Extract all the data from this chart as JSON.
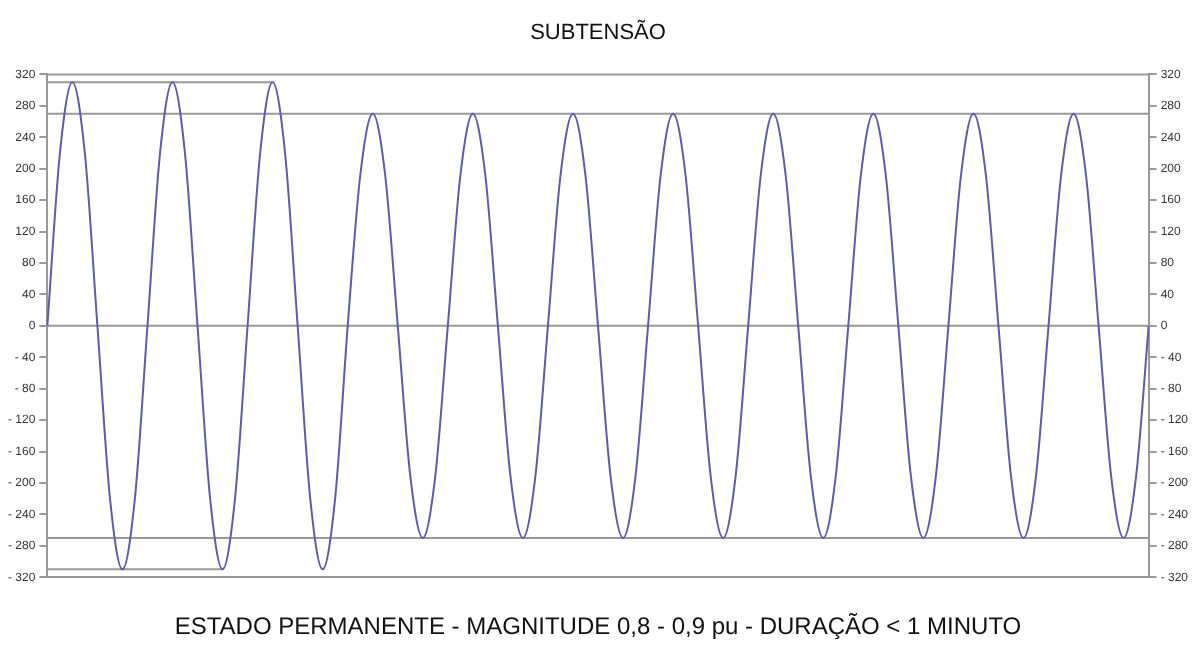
{
  "chart_data": {
    "type": "line",
    "title": "SUBTENSÃO",
    "xlabel": "ESTADO PERMANENTE - MAGNITUDE 0,8 - 0,9 pu - DURAÇÃO < 1 MINUTO",
    "categories": [
      null,
      null,
      null,
      null,
      null,
      null,
      null,
      null,
      null,
      null,
      null,
      null,
      null,
      null,
      null,
      null,
      null,
      null,
      null,
      null,
      null,
      null,
      null,
      null,
      null,
      null,
      null,
      null,
      null,
      null,
      null,
      null,
      null,
      null,
      null,
      null,
      null,
      null,
      null,
      null,
      null,
      null,
      null,
      null,
      null,
      null,
      null,
      null,
      null,
      null,
      null,
      null,
      null,
      null,
      null,
      null,
      null,
      null,
      null,
      null,
      null,
      null,
      null,
      null,
      null,
      null,
      null,
      null,
      null,
      null,
      null,
      null,
      null,
      null,
      null,
      null,
      null,
      null,
      null,
      null,
      null,
      null,
      null,
      null,
      null,
      null,
      null,
      null,
      null
    ],
    "series": [
      {
        "color": "#5c5ca8",
        "values": [
          0,
          219,
          310,
          219,
          0,
          -219,
          -310,
          -219,
          0,
          219,
          310,
          219,
          0,
          -219,
          -310,
          -219,
          0,
          219,
          310,
          219,
          0,
          -219,
          -310,
          -219,
          0,
          191,
          270,
          191,
          0,
          -191,
          -270,
          -191,
          0,
          191,
          270,
          191,
          0,
          -191,
          -270,
          -191,
          0,
          191,
          270,
          191,
          0,
          -191,
          -270,
          -191,
          0,
          191,
          270,
          191,
          0,
          -191,
          -270,
          -191,
          0,
          191,
          270,
          191,
          0,
          -191,
          -270,
          -191,
          0,
          191,
          270,
          191,
          0,
          -191,
          -270,
          -191,
          0,
          191,
          270,
          191,
          0,
          -191,
          -270,
          -191,
          0,
          191,
          270,
          191,
          0,
          -191,
          -270,
          -191,
          0
        ]
      },
      {
        "color": "#999999",
        "values": [
          310,
          310,
          310,
          310,
          310,
          310,
          310,
          310,
          310,
          310,
          310,
          310,
          310,
          310,
          310,
          310,
          310,
          310,
          310,
          null,
          null,
          null,
          null,
          null,
          null,
          null,
          null,
          null,
          null,
          null,
          null,
          null,
          null,
          null,
          null,
          null,
          null,
          null,
          null,
          null,
          null,
          null,
          null,
          null,
          null,
          null,
          null,
          null,
          null,
          null,
          null,
          null,
          null,
          null,
          null,
          null,
          null,
          null,
          null,
          null,
          null,
          null,
          null,
          null,
          null,
          null,
          null,
          null,
          null,
          null,
          null,
          null,
          null,
          null,
          null,
          null,
          null,
          null,
          null,
          null,
          null,
          null,
          null,
          null,
          null,
          null,
          null,
          null,
          null
        ]
      },
      {
        "color": "#999999",
        "values": [
          -310,
          -310,
          -310,
          -310,
          -310,
          -310,
          -310,
          -310,
          -310,
          -310,
          -310,
          -310,
          -310,
          -310,
          -310,
          null,
          null,
          null,
          null,
          null,
          null,
          null,
          null,
          null,
          null,
          null,
          null,
          null,
          null,
          null,
          null,
          null,
          null,
          null,
          null,
          null,
          null,
          null,
          null,
          null,
          null,
          null,
          null,
          null,
          null,
          null,
          null,
          null,
          null,
          null,
          null,
          null,
          null,
          null,
          null,
          null,
          null,
          null,
          null,
          null,
          null,
          null,
          null,
          null,
          null,
          null,
          null,
          null,
          null,
          null,
          null,
          null,
          null,
          null,
          null,
          null,
          null,
          null,
          null,
          null,
          null,
          null,
          null,
          null,
          null,
          null,
          null,
          null,
          null
        ]
      }
    ],
    "ylim": [
      -320,
      320
    ],
    "yticks": [
      {
        "value": -320,
        "label": "- 320"
      },
      {
        "value": -280,
        "label": "- 280"
      },
      {
        "value": -240,
        "label": "- 240"
      },
      {
        "value": -200,
        "label": "- 200"
      },
      {
        "value": -160,
        "label": "- 160"
      },
      {
        "value": -120,
        "label": "- 120"
      },
      {
        "value": -80,
        "label": "- 80"
      },
      {
        "value": -40,
        "label": "- 40"
      },
      0,
      40,
      80,
      120,
      160,
      200,
      240,
      280,
      320
    ],
    "y2lim": [
      -320,
      320
    ],
    "y2ticks": [
      {
        "value": -320,
        "label": "- 320"
      },
      {
        "value": -280,
        "label": "- 280"
      },
      {
        "value": -240,
        "label": "- 240"
      },
      {
        "value": -200,
        "label": "- 200"
      },
      {
        "value": -160,
        "label": "- 160"
      },
      {
        "value": -120,
        "label": "- 120"
      },
      {
        "value": -80,
        "label": "- 80"
      },
      {
        "value": -40,
        "label": "- 40"
      },
      0,
      40,
      80,
      120,
      160,
      200,
      240,
      280,
      320
    ],
    "ref_lines": [
      {
        "axis": "y",
        "value": 270,
        "color": "#999999"
      },
      {
        "axis": "y",
        "value": 0,
        "color": "#999999"
      },
      {
        "axis": "y",
        "value": -270,
        "color": "#999999"
      }
    ],
    "tick_labels": "y",
    "grid": false,
    "legend": false,
    "marker": "none",
    "line_style": "solid"
  }
}
